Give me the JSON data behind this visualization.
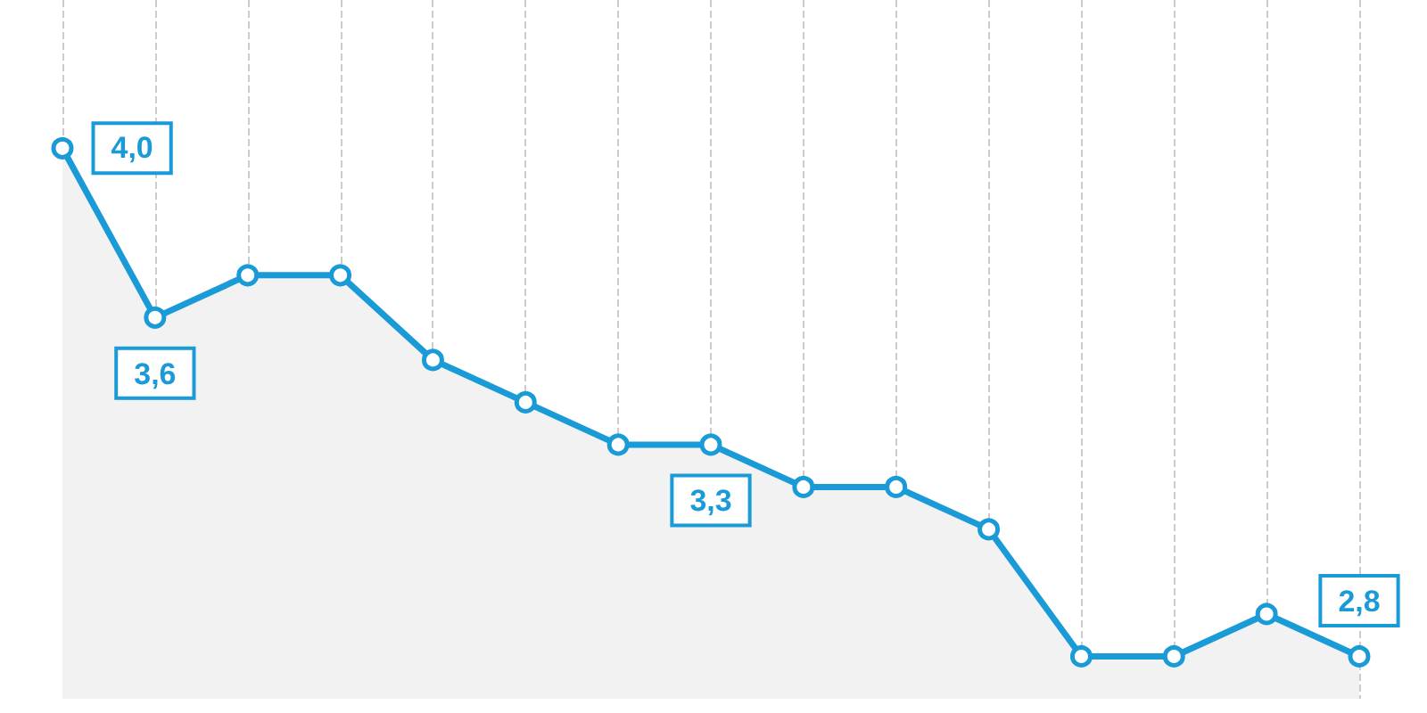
{
  "chart_data": {
    "type": "area",
    "categories": [
      null,
      null,
      null,
      null,
      null,
      null,
      null,
      null,
      null,
      null,
      null,
      null,
      null,
      null,
      null
    ],
    "series": [
      {
        "color": "#1a9bd7",
        "values": [
          4.0,
          3.6,
          3.7,
          3.7,
          3.5,
          3.4,
          3.3,
          3.3,
          3.2,
          3.2,
          3.1,
          2.8,
          2.8,
          2.9,
          2.8
        ],
        "value_labels": [
          "4,0",
          "3,6",
          null,
          null,
          null,
          null,
          null,
          "3,3",
          null,
          null,
          null,
          null,
          null,
          null,
          "2,8"
        ]
      }
    ],
    "ylim": [
      2.7,
      4.35
    ],
    "grid": "x",
    "marker": "circle",
    "line_style": "solid"
  }
}
